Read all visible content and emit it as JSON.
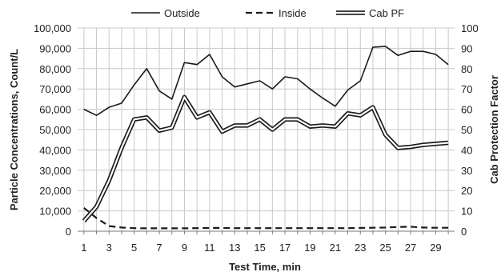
{
  "chart_data": {
    "type": "line",
    "title": "",
    "xlabel": "Test Time, min",
    "ylabel_left": "Particle Concentrations, Count/L",
    "ylabel_right": "Cab Protection Factor",
    "x": [
      1,
      2,
      3,
      4,
      5,
      6,
      7,
      8,
      9,
      10,
      11,
      12,
      13,
      14,
      15,
      16,
      17,
      18,
      19,
      20,
      21,
      22,
      23,
      24,
      25,
      26,
      27,
      28,
      29,
      30
    ],
    "x_tick_labels": [
      "1",
      "3",
      "5",
      "7",
      "9",
      "11",
      "13",
      "15",
      "17",
      "19",
      "21",
      "23",
      "25",
      "27",
      "29"
    ],
    "x_tick_values": [
      1,
      3,
      5,
      7,
      9,
      11,
      13,
      15,
      17,
      19,
      21,
      23,
      25,
      27,
      29
    ],
    "xlim": [
      0.5,
      30.5
    ],
    "ylim_left": [
      0,
      100000
    ],
    "ylim_right": [
      0,
      100
    ],
    "y_left_tick_labels": [
      "0",
      "10,000",
      "20,000",
      "30,000",
      "40,000",
      "50,000",
      "60,000",
      "70,000",
      "80,000",
      "90,000",
      "100,000"
    ],
    "y_left_tick_values": [
      0,
      10000,
      20000,
      30000,
      40000,
      50000,
      60000,
      70000,
      80000,
      90000,
      100000
    ],
    "y_right_tick_labels": [
      "0",
      "10",
      "20",
      "30",
      "40",
      "50",
      "60",
      "70",
      "80",
      "90",
      "100"
    ],
    "y_right_tick_values": [
      0,
      10,
      20,
      30,
      40,
      50,
      60,
      70,
      80,
      90,
      100
    ],
    "grid": true,
    "legend_position": "top-center",
    "series": [
      {
        "name": "Outside",
        "axis": "left",
        "style": "solid",
        "color": "#1a1a1a",
        "values": [
          60000,
          57000,
          61000,
          63000,
          72000,
          80000,
          69000,
          65000,
          83000,
          82000,
          87000,
          76000,
          71000,
          72500,
          74000,
          70000,
          76000,
          75000,
          70000,
          65500,
          61500,
          69500,
          74000,
          90500,
          91000,
          86500,
          88500,
          88500,
          87000,
          82000
        ]
      },
      {
        "name": "Inside",
        "axis": "left",
        "style": "dashed",
        "color": "#1a1a1a",
        "values": [
          11500,
          6500,
          2500,
          1800,
          1500,
          1400,
          1400,
          1400,
          1400,
          1500,
          1600,
          1600,
          1500,
          1500,
          1500,
          1500,
          1500,
          1500,
          1500,
          1500,
          1500,
          1500,
          1600,
          1700,
          1800,
          2100,
          2200,
          1800,
          1700,
          1700
        ]
      },
      {
        "name": "Cab PF",
        "axis": "right",
        "style": "double",
        "color": "#1a1a1a",
        "values": [
          5,
          12,
          25,
          41,
          55,
          56,
          49.5,
          51,
          66,
          56,
          58.5,
          49,
          52,
          52,
          55,
          50,
          55,
          55,
          51.5,
          52,
          51.5,
          58,
          57,
          61,
          47.5,
          41,
          41.5,
          42.5,
          43,
          43.5
        ]
      }
    ]
  }
}
